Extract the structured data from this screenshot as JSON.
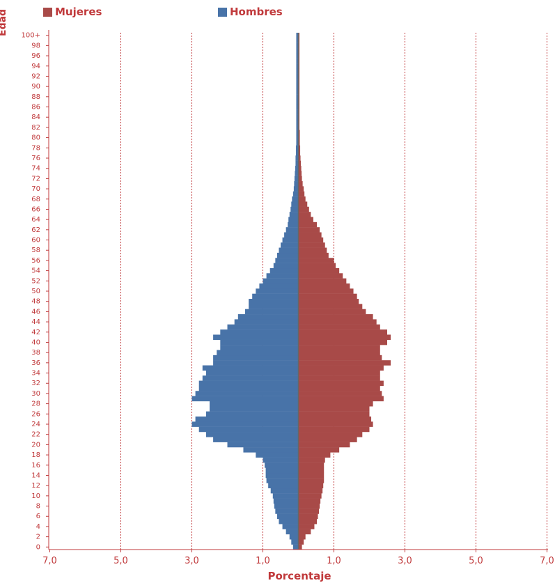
{
  "legend": {
    "mujeres": "Mujeres",
    "hombres": "Hombres",
    "mujeres_color": "#a84a48",
    "hombres_color": "#4873a8"
  },
  "chart_data": {
    "type": "bar",
    "orientation": "horizontal-population-pyramid",
    "ylabel": "Edad",
    "xlabel": "Porcentaje",
    "y_tick_labels": [
      "0",
      "2",
      "4",
      "6",
      "8",
      "10",
      "12",
      "14",
      "16",
      "18",
      "20",
      "22",
      "24",
      "26",
      "28",
      "30",
      "32",
      "34",
      "36",
      "38",
      "40",
      "42",
      "44",
      "46",
      "48",
      "50",
      "52",
      "54",
      "56",
      "58",
      "60",
      "62",
      "64",
      "66",
      "68",
      "70",
      "72",
      "74",
      "76",
      "78",
      "80",
      "82",
      "84",
      "86",
      "88",
      "90",
      "92",
      "94",
      "96",
      "98",
      "100+"
    ],
    "x_tick_labels": [
      "7,0",
      "5,0",
      "3,0",
      "1,0",
      "1,0",
      "3,0",
      "5,0",
      "7,0"
    ],
    "x_tick_values": [
      -7,
      -5,
      -3,
      -1,
      1,
      3,
      5,
      7
    ],
    "xlim": [
      -7,
      7
    ],
    "grid": "vertical dashed",
    "colors": {
      "grid": "#c0393b",
      "axis": "#c0393b",
      "text": "#c0393b"
    },
    "series": [
      {
        "name": "Hombres",
        "side": "left",
        "color": "#4873a8",
        "ages": [
          0,
          1,
          2,
          3,
          4,
          5,
          6,
          7,
          8,
          9,
          10,
          11,
          12,
          13,
          14,
          15,
          16,
          17,
          18,
          19,
          20,
          21,
          22,
          23,
          24,
          25,
          26,
          27,
          28,
          29,
          30,
          31,
          32,
          33,
          34,
          35,
          36,
          37,
          38,
          39,
          40,
          41,
          42,
          43,
          44,
          45,
          46,
          47,
          48,
          49,
          50,
          51,
          52,
          53,
          54,
          55,
          56,
          57,
          58,
          59,
          60,
          61,
          62,
          63,
          64,
          65,
          66,
          67,
          68,
          69,
          70,
          71,
          72,
          73,
          74,
          75,
          76,
          77,
          78,
          79,
          80,
          81,
          82,
          83,
          84,
          85,
          86,
          87,
          88,
          89,
          90,
          91,
          92,
          93,
          94,
          95,
          96,
          97,
          98,
          99,
          100
        ],
        "values": [
          0.15,
          0.2,
          0.25,
          0.35,
          0.45,
          0.55,
          0.6,
          0.65,
          0.68,
          0.7,
          0.72,
          0.78,
          0.85,
          0.9,
          0.92,
          0.92,
          0.95,
          1.0,
          1.2,
          1.55,
          2.0,
          2.4,
          2.6,
          2.8,
          3.0,
          2.9,
          2.6,
          2.5,
          2.5,
          3.0,
          2.9,
          2.8,
          2.8,
          2.7,
          2.6,
          2.7,
          2.4,
          2.4,
          2.3,
          2.2,
          2.2,
          2.4,
          2.2,
          2.0,
          1.8,
          1.7,
          1.5,
          1.4,
          1.4,
          1.3,
          1.2,
          1.1,
          1.0,
          0.9,
          0.8,
          0.7,
          0.65,
          0.6,
          0.55,
          0.5,
          0.45,
          0.4,
          0.35,
          0.3,
          0.28,
          0.25,
          0.22,
          0.2,
          0.18,
          0.15,
          0.13,
          0.12,
          0.11,
          0.1,
          0.09,
          0.08,
          0.08,
          0.07,
          0.07,
          0.06,
          0.06,
          0.06,
          0.06,
          0.06,
          0.06,
          0.06,
          0.06,
          0.06,
          0.06,
          0.06,
          0.06,
          0.06,
          0.06,
          0.06,
          0.06,
          0.06,
          0.06,
          0.06,
          0.06,
          0.06,
          0.06
        ]
      },
      {
        "name": "Mujeres",
        "side": "right",
        "color": "#a84a48",
        "ages": [
          0,
          1,
          2,
          3,
          4,
          5,
          6,
          7,
          8,
          9,
          10,
          11,
          12,
          13,
          14,
          15,
          16,
          17,
          18,
          19,
          20,
          21,
          22,
          23,
          24,
          25,
          26,
          27,
          28,
          29,
          30,
          31,
          32,
          33,
          34,
          35,
          36,
          37,
          38,
          39,
          40,
          41,
          42,
          43,
          44,
          45,
          46,
          47,
          48,
          49,
          50,
          51,
          52,
          53,
          54,
          55,
          56,
          57,
          58,
          59,
          60,
          61,
          62,
          63,
          64,
          65,
          66,
          67,
          68,
          69,
          70,
          71,
          72,
          73,
          74,
          75,
          76,
          77,
          78,
          79,
          80,
          81,
          82,
          83,
          84,
          85,
          86,
          87,
          88,
          89,
          90,
          91,
          92,
          93,
          94,
          95,
          96,
          97,
          98,
          99,
          100
        ],
        "values": [
          0.1,
          0.15,
          0.2,
          0.35,
          0.45,
          0.52,
          0.55,
          0.58,
          0.6,
          0.62,
          0.65,
          0.68,
          0.7,
          0.72,
          0.72,
          0.72,
          0.72,
          0.75,
          0.9,
          1.15,
          1.45,
          1.65,
          1.8,
          2.0,
          2.1,
          2.05,
          2.0,
          2.0,
          2.1,
          2.4,
          2.35,
          2.3,
          2.4,
          2.3,
          2.3,
          2.4,
          2.6,
          2.35,
          2.3,
          2.3,
          2.5,
          2.6,
          2.5,
          2.3,
          2.2,
          2.1,
          1.9,
          1.8,
          1.7,
          1.65,
          1.55,
          1.45,
          1.35,
          1.25,
          1.15,
          1.05,
          1.0,
          0.85,
          0.8,
          0.75,
          0.7,
          0.65,
          0.6,
          0.52,
          0.42,
          0.35,
          0.3,
          0.25,
          0.2,
          0.17,
          0.15,
          0.12,
          0.1,
          0.09,
          0.08,
          0.07,
          0.06,
          0.05,
          0.05,
          0.04,
          0.04,
          0.04,
          0.03,
          0.03,
          0.03,
          0.03,
          0.03,
          0.03,
          0.03,
          0.03,
          0.03,
          0.03,
          0.03,
          0.03,
          0.03,
          0.03,
          0.03,
          0.03,
          0.03,
          0.03,
          0.03
        ]
      }
    ]
  }
}
